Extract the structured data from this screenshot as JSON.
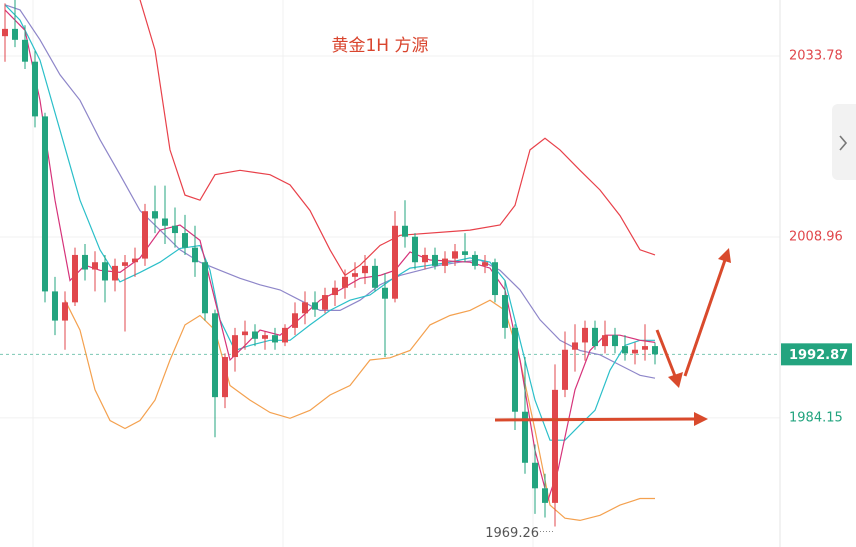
{
  "chart_data": {
    "type": "candlestick",
    "title": "黄金1H 方源",
    "ylim": [
      1966.45,
      2041.46
    ],
    "xlim": [
      -0.5,
      77.5
    ],
    "yticks": [
      2033.78,
      2008.96,
      1984.15
    ],
    "last_price": 1992.87,
    "low": 1969.26,
    "up_color": "#e0474c",
    "down_color": "#23a47f",
    "candles": [
      [
        2036.5,
        2041.0,
        2033.0,
        2037.5
      ],
      [
        2037.5,
        2041.5,
        2035.0,
        2036.0
      ],
      [
        2036.0,
        2038.0,
        2032.0,
        2033.0
      ],
      [
        2033.0,
        2034.5,
        2024.0,
        2025.5
      ],
      [
        2025.5,
        2026.0,
        2000.0,
        2001.5
      ],
      [
        2001.5,
        2003.5,
        1995.5,
        1997.5
      ],
      [
        1997.5,
        2001.5,
        1993.5,
        2000.0
      ],
      [
        2000.0,
        2007.5,
        1999.5,
        2006.5
      ],
      [
        2006.5,
        2008.0,
        2003.0,
        2004.5
      ],
      [
        2004.5,
        2007.0,
        2001.5,
        2005.5
      ],
      [
        2005.5,
        2006.5,
        2000.0,
        2003.0
      ],
      [
        2003.0,
        2006.0,
        2001.5,
        2005.0
      ],
      [
        2005.0,
        2006.5,
        1996.0,
        2005.5
      ],
      [
        2005.5,
        2007.5,
        2003.5,
        2006.0
      ],
      [
        2006.0,
        2013.5,
        2005.0,
        2012.5
      ],
      [
        2012.5,
        2016.0,
        2009.5,
        2011.5
      ],
      [
        2011.5,
        2016.0,
        2008.0,
        2010.5
      ],
      [
        2010.5,
        2013.0,
        2007.5,
        2009.5
      ],
      [
        2009.5,
        2012.0,
        2006.5,
        2007.5
      ],
      [
        2007.5,
        2010.5,
        2003.5,
        2005.5
      ],
      [
        2005.5,
        2006.0,
        1997.5,
        1998.5
      ],
      [
        1998.5,
        1999.0,
        1981.5,
        1987.0
      ],
      [
        1987.0,
        1993.0,
        1985.5,
        1992.5
      ],
      [
        1992.5,
        1996.5,
        1990.5,
        1995.5
      ],
      [
        1995.5,
        1997.5,
        1993.5,
        1996.0
      ],
      [
        1996.0,
        1997.0,
        1994.0,
        1995.0
      ],
      [
        1995.0,
        1996.0,
        1993.5,
        1995.5
      ],
      [
        1995.5,
        1996.5,
        1993.5,
        1994.5
      ],
      [
        1994.5,
        1997.0,
        1994.0,
        1996.5
      ],
      [
        1996.5,
        2000.0,
        1995.5,
        1998.5
      ],
      [
        1998.5,
        2001.5,
        1997.0,
        2000.0
      ],
      [
        2000.0,
        2001.5,
        1998.0,
        1999.0
      ],
      [
        1999.0,
        2002.0,
        1998.5,
        2001.0
      ],
      [
        2001.0,
        2003.0,
        1999.5,
        2002.0
      ],
      [
        2002.0,
        2004.5,
        2000.5,
        2003.5
      ],
      [
        2003.5,
        2005.5,
        2002.0,
        2004.0
      ],
      [
        2004.0,
        2006.5,
        2002.5,
        2005.0
      ],
      [
        2005.0,
        2006.0,
        2001.5,
        2002.0
      ],
      [
        2002.0,
        2004.0,
        1992.5,
        2000.5
      ],
      [
        2000.5,
        2012.5,
        2000.0,
        2010.5
      ],
      [
        2010.5,
        2014.0,
        2007.5,
        2009.0
      ],
      [
        2009.0,
        2009.5,
        2004.5,
        2005.5
      ],
      [
        2005.5,
        2007.5,
        2004.5,
        2006.5
      ],
      [
        2006.5,
        2007.5,
        2004.5,
        2005.0
      ],
      [
        2005.0,
        2007.0,
        2004.0,
        2006.0
      ],
      [
        2006.0,
        2008.0,
        2005.0,
        2007.0
      ],
      [
        2007.0,
        2009.5,
        2005.5,
        2006.5
      ],
      [
        2006.5,
        2007.0,
        2004.5,
        2005.0
      ],
      [
        2005.0,
        2006.5,
        2004.0,
        2005.5
      ],
      [
        2005.5,
        2006.0,
        2000.0,
        2001.0
      ],
      [
        2001.0,
        2003.0,
        1995.0,
        1996.5
      ],
      [
        1996.5,
        1997.0,
        1982.5,
        1985.0
      ],
      [
        1985.0,
        1992.5,
        1976.5,
        1978.0
      ],
      [
        1978.0,
        1980.5,
        1971.0,
        1974.5
      ],
      [
        1974.5,
        1976.5,
        1970.5,
        1972.5
      ],
      [
        1972.5,
        1991.5,
        1969.26,
        1988.0
      ],
      [
        1988.0,
        1996.0,
        1987.0,
        1993.5
      ],
      [
        1993.5,
        1997.0,
        1990.5,
        1994.5
      ],
      [
        1994.5,
        1997.5,
        1992.0,
        1996.5
      ],
      [
        1996.5,
        1997.5,
        1993.5,
        1994.0
      ],
      [
        1994.0,
        1997.5,
        1993.0,
        1995.5
      ],
      [
        1995.5,
        1996.5,
        1993.0,
        1994.0
      ],
      [
        1994.0,
        1995.5,
        1992.0,
        1993.0
      ],
      [
        1993.0,
        1994.5,
        1991.5,
        1993.5
      ],
      [
        1993.5,
        1997.0,
        1992.0,
        1994.0
      ],
      [
        1994.0,
        1994.5,
        1991.5,
        1992.87
      ]
    ],
    "lines": [
      {
        "color": "#e8414a",
        "x": [
          13.5,
          15,
          16.5,
          18,
          19.5,
          21,
          23.5,
          26.5,
          28.5,
          30.5,
          32.5,
          34,
          35.5,
          37.5,
          39.5,
          46.5,
          49.5,
          51,
          52.5,
          54,
          55.5,
          57.5,
          59.5,
          61.5,
          63.5,
          65
        ],
        "values": [
          2041.5,
          2034.6,
          2020.9,
          2014.7,
          2014.0,
          2017.5,
          2018.1,
          2017.5,
          2016.1,
          2012.6,
          2007.2,
          2003.7,
          2005.1,
          2007.8,
          2009.2,
          2009.9,
          2010.6,
          2013.3,
          2020.9,
          2022.5,
          2020.9,
          2018.1,
          2015.4,
          2011.9,
          2007.2,
          2006.5
        ]
      },
      {
        "color": "#f4a14f",
        "x": [
          6,
          7.5,
          9,
          10.5,
          12,
          13.5,
          15,
          16.5,
          18,
          19.5,
          21,
          22.5,
          24.5,
          26.5,
          28.5,
          30.5,
          32.5,
          34.5,
          36.5,
          38.5,
          40.5,
          42.5,
          44.5,
          46.5,
          48.5,
          50,
          51.5,
          53,
          54.5,
          56,
          57.5,
          59.5,
          61.5,
          63.5,
          65
        ],
        "values": [
          2000.3,
          1996.2,
          1988.0,
          1983.8,
          1982.7,
          1983.8,
          1986.6,
          1992.1,
          1996.9,
          1998.2,
          1996.2,
          1988.6,
          1986.6,
          1984.9,
          1984.1,
          1985.2,
          1987.3,
          1988.6,
          1992.1,
          1992.4,
          1993.4,
          1996.9,
          1998.2,
          1998.9,
          2000.3,
          1998.9,
          1992.1,
          1982.5,
          1972.2,
          1970.4,
          1970.1,
          1970.8,
          1972.2,
          1973.1,
          1973.1
        ]
      },
      {
        "color": "#8e86c9",
        "x": [
          0,
          1.5,
          3.5,
          5.5,
          7.5,
          9.5,
          11.5,
          13.5,
          15.5,
          17.5,
          19.5,
          21.5,
          23.5,
          25.5,
          27.5,
          29.5,
          31.5,
          33.5,
          35.5,
          37.5,
          39.5,
          41.5,
          43.5,
          45.5,
          47.5,
          49.5,
          51.5,
          53.5,
          55.5,
          57.5,
          59.5,
          61.5,
          63.5,
          65
        ],
        "values": [
          2040.8,
          2040.1,
          2036.0,
          2031.2,
          2027.7,
          2022.3,
          2017.5,
          2012.6,
          2009.9,
          2007.2,
          2005.5,
          2004.4,
          2003.3,
          2002.4,
          2001.7,
          2000.3,
          1998.9,
          1998.9,
          2000.3,
          2002.4,
          2003.7,
          2004.4,
          2005.1,
          2005.5,
          2005.8,
          2004.4,
          2001.7,
          1997.6,
          1994.8,
          1993.4,
          1992.8,
          1991.4,
          1990.0,
          1989.6
        ]
      },
      {
        "color": "#2bbfc9",
        "x": [
          0,
          1.5,
          3.5,
          5.5,
          7.5,
          9.5,
          11.5,
          13.5,
          15.5,
          17.5,
          19.5,
          20.5,
          21.5,
          23,
          24.5,
          26.5,
          28.5,
          30.5,
          32.5,
          34.5,
          36.5,
          38.5,
          40.5,
          42.5,
          44.5,
          46.5,
          48.5,
          50,
          51.5,
          53,
          54.5,
          56,
          57.5,
          59,
          60.5,
          62,
          63.5,
          65
        ],
        "values": [
          2040.8,
          2038.7,
          2033.2,
          2023.6,
          2014.0,
          2007.2,
          2002.8,
          2004.1,
          2005.5,
          2007.4,
          2007.8,
          2004.4,
          1997.6,
          1993.4,
          1994.1,
          1994.8,
          1994.8,
          1996.9,
          1998.9,
          2000.3,
          2001.0,
          2003.0,
          2004.7,
          2005.1,
          2005.5,
          2006.1,
          2005.5,
          2003.0,
          1994.8,
          1986.6,
          1981.1,
          1981.1,
          1983.2,
          1985.2,
          1990.7,
          1994.1,
          1994.8,
          1994.8
        ]
      },
      {
        "color": "#d6337a",
        "x": [
          0,
          2,
          3.5,
          5,
          6.5,
          8,
          9.5,
          11.5,
          13.5,
          15.5,
          17.5,
          19.5,
          21,
          22.5,
          24,
          25.5,
          27.5,
          29.5,
          31.5,
          33.5,
          35.5,
          37.5,
          39,
          40.5,
          42.5,
          46.5,
          48.5,
          50,
          51.5,
          53,
          54.3,
          55.3,
          57,
          58.5,
          60,
          61.5,
          63.5,
          65
        ],
        "values": [
          2040.1,
          2037.3,
          2027.7,
          2014.0,
          2003.0,
          2005.1,
          2004.4,
          2004.1,
          2006.1,
          2009.9,
          2010.6,
          2008.5,
          2000.3,
          1992.1,
          1994.1,
          1996.2,
          1995.5,
          1997.8,
          2000.3,
          2001.7,
          2003.3,
          2003.7,
          2004.4,
          2006.9,
          2005.8,
          2005.5,
          2004.7,
          2001.7,
          1992.1,
          1979.7,
          1972.9,
          1977.0,
          1988.0,
          1993.4,
          1995.5,
          1995.5,
          1994.8,
          1994.5
        ]
      }
    ]
  }
}
